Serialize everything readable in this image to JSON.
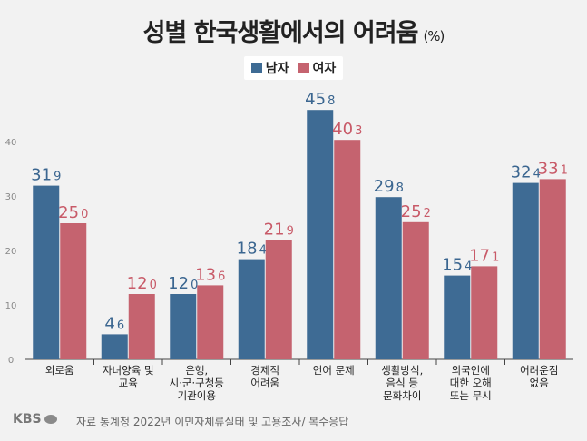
{
  "title": "성별 한국생활에서의 어려움",
  "unit": "(%)",
  "legend": {
    "male": "남자",
    "female": "여자"
  },
  "colors": {
    "male": "#3e6b94",
    "female": "#c5636f",
    "male_text": "#3b6690",
    "female_text": "#c85a68"
  },
  "source": "자료 통계청 2022년 이민자체류실태 및 고용조사/ 복수응답",
  "logo": "KBS",
  "chart_data": {
    "type": "bar",
    "title": "성별 한국생활에서의 어려움",
    "ylabel": "(%)",
    "ylim": [
      0,
      48
    ],
    "yticks": [
      "0",
      "10",
      "20",
      "30",
      "40"
    ],
    "categories": [
      [
        "외로움"
      ],
      [
        "자녀양육 및",
        "교육"
      ],
      [
        "은행,",
        "시·군·구청등",
        "기관이용"
      ],
      [
        "경제적",
        "어려움"
      ],
      [
        "언어 문제"
      ],
      [
        "생활방식,",
        "음식 등",
        "문화차이"
      ],
      [
        "외국인에",
        "대한 오해",
        "또는 무시"
      ],
      [
        "어려운점",
        "없음"
      ]
    ],
    "series": [
      {
        "name": "남자",
        "values": [
          31.9,
          4.6,
          12.0,
          18.4,
          45.8,
          29.8,
          15.4,
          32.4
        ]
      },
      {
        "name": "여자",
        "values": [
          25.0,
          12.0,
          13.6,
          21.9,
          40.3,
          25.2,
          17.1,
          33.1
        ]
      }
    ]
  }
}
